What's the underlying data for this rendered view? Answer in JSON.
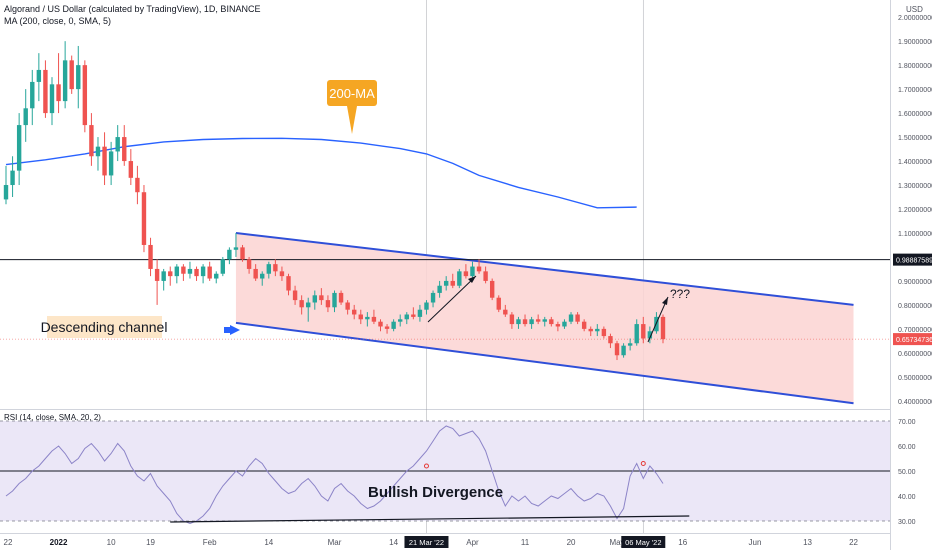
{
  "header": {
    "title": "Algorand / US Dollar (calculated by TradingView), 1D, BINANCE",
    "ma_legend": "MA (200, close, 0, SMA, 5)",
    "currency": "USD"
  },
  "colors": {
    "bull": "#26a69a",
    "bear": "#ef5350",
    "ma": "#2962ff",
    "channel_line": "#2f4fd8",
    "channel_fill": "#fbd4d2",
    "rsi_line": "#8c84c8",
    "rsi_band": "#ebe7f7",
    "callout": "#f5a623",
    "label_bg": "#fde6c8"
  },
  "chart_data": [
    {
      "type": "candlestick",
      "title": "Algorand / US Dollar (calculated by TradingView), 1D, BINANCE",
      "ylim": [
        0.37,
        2.03
      ],
      "y_ticks": [
        "2.00000000",
        "1.90000000",
        "1.80000000",
        "1.70000000",
        "1.60000000",
        "1.50000000",
        "1.40000000",
        "1.30000000",
        "1.20000000",
        "1.10000000",
        "0.90000000",
        "0.80000000",
        "0.70000000",
        "0.60000000",
        "0.50000000",
        "0.40000000"
      ],
      "y_tick_values": [
        2.0,
        1.9,
        1.8,
        1.7,
        1.6,
        1.5,
        1.4,
        1.3,
        1.2,
        1.1,
        0.9,
        0.8,
        0.7,
        0.6,
        0.5,
        0.4
      ],
      "x_ticks": [
        "22",
        "2022",
        "10",
        "19",
        "Feb",
        "14",
        "Mar",
        "14",
        "21 Mar '22",
        "Apr",
        "11",
        "20",
        "May",
        "06 May '22",
        "16",
        "Jun",
        "13",
        "22"
      ],
      "x_tick_bars": [
        -2,
        8,
        16,
        22,
        31,
        40,
        50,
        59,
        64,
        71,
        79,
        86,
        93,
        97,
        103,
        114,
        122,
        129
      ],
      "horizontal_level": {
        "value": 0.98887589,
        "label": "0.98887589"
      },
      "last_price": {
        "value": 0.65734736,
        "label": "0.65734736"
      },
      "ma200": {
        "name": "MA (200, close, 0, SMA, 5)",
        "bars": [
          0,
          6,
          12,
          18,
          24,
          30,
          36,
          42,
          48,
          54,
          60,
          64,
          68,
          72,
          78,
          84,
          90,
          96
        ],
        "values": [
          1.385,
          1.405,
          1.43,
          1.46,
          1.48,
          1.49,
          1.494,
          1.495,
          1.49,
          1.475,
          1.452,
          1.43,
          1.39,
          1.34,
          1.29,
          1.25,
          1.205,
          1.208
        ]
      },
      "channel": {
        "upper": {
          "from": [
            35,
            1.1
          ],
          "to": [
            129,
            0.8
          ]
        },
        "lower": {
          "from": [
            35,
            0.725
          ],
          "to": [
            129,
            0.39
          ]
        }
      },
      "ohlc": [
        [
          1.24,
          1.38,
          1.22,
          1.3
        ],
        [
          1.3,
          1.42,
          1.25,
          1.36
        ],
        [
          1.36,
          1.6,
          1.3,
          1.55
        ],
        [
          1.55,
          1.7,
          1.48,
          1.62
        ],
        [
          1.62,
          1.78,
          1.55,
          1.73
        ],
        [
          1.73,
          1.85,
          1.65,
          1.78
        ],
        [
          1.78,
          1.82,
          1.58,
          1.6
        ],
        [
          1.6,
          1.75,
          1.55,
          1.72
        ],
        [
          1.72,
          1.85,
          1.6,
          1.65
        ],
        [
          1.65,
          1.9,
          1.62,
          1.82
        ],
        [
          1.82,
          1.84,
          1.68,
          1.7
        ],
        [
          1.7,
          1.88,
          1.62,
          1.8
        ],
        [
          1.8,
          1.82,
          1.52,
          1.55
        ],
        [
          1.55,
          1.6,
          1.38,
          1.42
        ],
        [
          1.42,
          1.5,
          1.36,
          1.46
        ],
        [
          1.46,
          1.52,
          1.3,
          1.34
        ],
        [
          1.34,
          1.48,
          1.3,
          1.44
        ],
        [
          1.44,
          1.55,
          1.4,
          1.5
        ],
        [
          1.5,
          1.55,
          1.38,
          1.4
        ],
        [
          1.4,
          1.45,
          1.3,
          1.33
        ],
        [
          1.33,
          1.38,
          1.22,
          1.27
        ],
        [
          1.27,
          1.3,
          1.02,
          1.05
        ],
        [
          1.05,
          1.08,
          0.92,
          0.95
        ],
        [
          0.95,
          0.99,
          0.8,
          0.9
        ],
        [
          0.9,
          0.95,
          0.86,
          0.94
        ],
        [
          0.94,
          0.96,
          0.88,
          0.92
        ],
        [
          0.92,
          0.97,
          0.89,
          0.96
        ],
        [
          0.96,
          0.97,
          0.9,
          0.93
        ],
        [
          0.93,
          0.98,
          0.91,
          0.95
        ],
        [
          0.95,
          0.96,
          0.9,
          0.92
        ],
        [
          0.92,
          0.97,
          0.89,
          0.96
        ],
        [
          0.96,
          0.98,
          0.9,
          0.91
        ],
        [
          0.91,
          0.94,
          0.89,
          0.93
        ],
        [
          0.93,
          1.0,
          0.92,
          0.99
        ],
        [
          0.99,
          1.04,
          0.97,
          1.03
        ],
        [
          1.03,
          1.1,
          1.0,
          1.04
        ],
        [
          1.04,
          1.05,
          0.98,
          0.99
        ],
        [
          0.99,
          1.0,
          0.93,
          0.95
        ],
        [
          0.95,
          0.97,
          0.9,
          0.91
        ],
        [
          0.91,
          0.94,
          0.88,
          0.93
        ],
        [
          0.93,
          0.98,
          0.91,
          0.97
        ],
        [
          0.97,
          0.99,
          0.92,
          0.94
        ],
        [
          0.94,
          0.96,
          0.9,
          0.92
        ],
        [
          0.92,
          0.93,
          0.84,
          0.86
        ],
        [
          0.86,
          0.88,
          0.8,
          0.82
        ],
        [
          0.82,
          0.84,
          0.76,
          0.79
        ],
        [
          0.79,
          0.83,
          0.73,
          0.81
        ],
        [
          0.81,
          0.86,
          0.78,
          0.84
        ],
        [
          0.84,
          0.87,
          0.8,
          0.82
        ],
        [
          0.82,
          0.84,
          0.77,
          0.79
        ],
        [
          0.79,
          0.86,
          0.77,
          0.85
        ],
        [
          0.85,
          0.86,
          0.8,
          0.81
        ],
        [
          0.81,
          0.82,
          0.76,
          0.78
        ],
        [
          0.78,
          0.8,
          0.74,
          0.76
        ],
        [
          0.76,
          0.78,
          0.72,
          0.74
        ],
        [
          0.74,
          0.77,
          0.71,
          0.75
        ],
        [
          0.75,
          0.78,
          0.72,
          0.73
        ],
        [
          0.73,
          0.74,
          0.69,
          0.71
        ],
        [
          0.71,
          0.72,
          0.68,
          0.7
        ],
        [
          0.7,
          0.74,
          0.69,
          0.73
        ],
        [
          0.73,
          0.76,
          0.71,
          0.74
        ],
        [
          0.74,
          0.77,
          0.72,
          0.76
        ],
        [
          0.76,
          0.79,
          0.74,
          0.75
        ],
        [
          0.75,
          0.8,
          0.73,
          0.78
        ],
        [
          0.78,
          0.82,
          0.76,
          0.81
        ],
        [
          0.81,
          0.86,
          0.79,
          0.85
        ],
        [
          0.85,
          0.9,
          0.83,
          0.88
        ],
        [
          0.88,
          0.92,
          0.86,
          0.9
        ],
        [
          0.9,
          0.93,
          0.87,
          0.88
        ],
        [
          0.88,
          0.95,
          0.87,
          0.94
        ],
        [
          0.94,
          0.97,
          0.91,
          0.92
        ],
        [
          0.92,
          0.98,
          0.9,
          0.96
        ],
        [
          0.96,
          0.99,
          0.93,
          0.94
        ],
        [
          0.94,
          0.96,
          0.89,
          0.9
        ],
        [
          0.9,
          0.91,
          0.82,
          0.83
        ],
        [
          0.83,
          0.84,
          0.77,
          0.78
        ],
        [
          0.78,
          0.8,
          0.75,
          0.76
        ],
        [
          0.76,
          0.77,
          0.7,
          0.72
        ],
        [
          0.72,
          0.75,
          0.7,
          0.74
        ],
        [
          0.74,
          0.76,
          0.71,
          0.72
        ],
        [
          0.72,
          0.75,
          0.7,
          0.74
        ],
        [
          0.74,
          0.76,
          0.72,
          0.73
        ],
        [
          0.73,
          0.75,
          0.71,
          0.74
        ],
        [
          0.74,
          0.75,
          0.71,
          0.72
        ],
        [
          0.72,
          0.73,
          0.69,
          0.71
        ],
        [
          0.71,
          0.74,
          0.7,
          0.73
        ],
        [
          0.73,
          0.77,
          0.72,
          0.76
        ],
        [
          0.76,
          0.77,
          0.72,
          0.73
        ],
        [
          0.73,
          0.74,
          0.69,
          0.7
        ],
        [
          0.7,
          0.71,
          0.67,
          0.69
        ],
        [
          0.69,
          0.72,
          0.67,
          0.7
        ],
        [
          0.7,
          0.71,
          0.66,
          0.67
        ],
        [
          0.67,
          0.68,
          0.62,
          0.64
        ],
        [
          0.64,
          0.65,
          0.57,
          0.59
        ],
        [
          0.59,
          0.64,
          0.58,
          0.63
        ],
        [
          0.63,
          0.66,
          0.61,
          0.64
        ],
        [
          0.64,
          0.74,
          0.63,
          0.72
        ],
        [
          0.72,
          0.75,
          0.64,
          0.66
        ],
        [
          0.66,
          0.71,
          0.64,
          0.69
        ],
        [
          0.69,
          0.77,
          0.68,
          0.75
        ],
        [
          0.75,
          0.76,
          0.64,
          0.657
        ]
      ],
      "annotations": {
        "callout": "200-MA",
        "channel_label": "Descending channel",
        "question": "???"
      }
    },
    {
      "type": "line",
      "name": "RSI",
      "legend": "RSI (14, close, SMA, 20, 2)",
      "ylim": [
        26,
        74
      ],
      "y_ticks": [
        "70.00",
        "60.00",
        "50.00",
        "40.00",
        "30.00"
      ],
      "y_tick_values": [
        70,
        60,
        50,
        40,
        30
      ],
      "band": [
        30,
        70
      ],
      "midline": 50,
      "values": [
        40,
        42,
        45,
        47,
        50,
        52,
        55,
        58,
        60,
        57,
        53,
        55,
        59,
        61,
        58,
        54,
        57,
        61,
        58,
        52,
        48,
        46,
        49,
        44,
        41,
        38,
        33,
        30,
        29,
        30,
        32,
        35,
        40,
        44,
        47,
        50,
        48,
        52,
        55,
        53,
        49,
        46,
        43,
        41,
        42,
        45,
        47,
        44,
        40,
        38,
        43,
        45,
        42,
        40,
        37,
        35,
        36,
        38,
        41,
        44,
        47,
        50,
        52,
        55,
        58,
        62,
        66,
        68,
        67,
        64,
        65,
        66,
        63,
        58,
        50,
        42,
        36,
        40,
        38,
        40,
        37,
        36,
        38,
        40,
        39,
        41,
        43,
        40,
        38,
        39,
        41,
        40,
        36,
        31,
        35,
        48,
        53,
        47,
        52,
        49,
        45
      ],
      "annotations": {
        "label": "Bullish Divergence"
      }
    }
  ]
}
